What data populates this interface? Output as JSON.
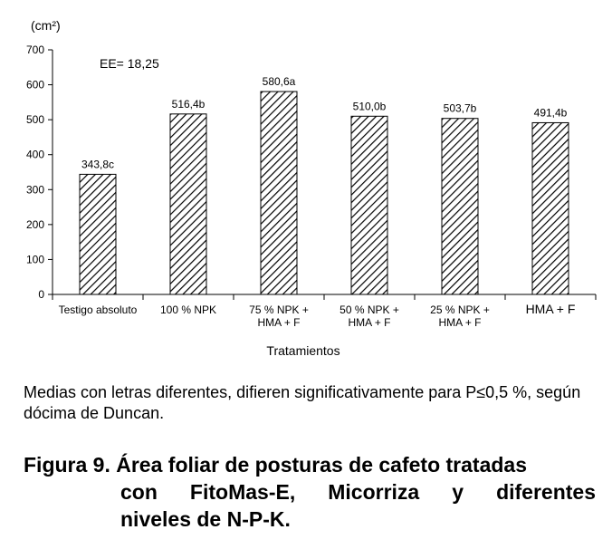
{
  "chart_data": {
    "type": "bar",
    "unit_label": "(cm²)",
    "annotation": "EE= 18,25",
    "xlabel": "Tratamientos",
    "ylabel": "",
    "ylim": [
      0,
      700
    ],
    "yticks": [
      0,
      100,
      200,
      300,
      400,
      500,
      600,
      700
    ],
    "categories": [
      [
        "Testigo absoluto"
      ],
      [
        "100 % NPK"
      ],
      [
        "75 % NPK +",
        "HMA + F"
      ],
      [
        "50 % NPK +",
        "HMA + F"
      ],
      [
        "25 % NPK +",
        "HMA + F"
      ],
      [
        "HMA + F"
      ]
    ],
    "values": [
      343.8,
      516.4,
      580.6,
      510.0,
      503.7,
      491.4
    ],
    "data_labels": [
      "343,8c",
      "516,4b",
      "580,6a",
      "510,0b",
      "503,7b",
      "491,4b"
    ],
    "pattern": "diagonal-hatch",
    "grid": false,
    "legend": "none"
  },
  "note": "Medias con letras diferentes, difieren significativamente para P≤0,5 %, según dócima de Duncan.",
  "caption": {
    "figure_label": "Figura 9.",
    "line1": "Área foliar de posturas de cafeto tratadas",
    "line2": "con FitoMas-E, Micorriza y diferentes",
    "line3": "niveles de N-P-K."
  }
}
